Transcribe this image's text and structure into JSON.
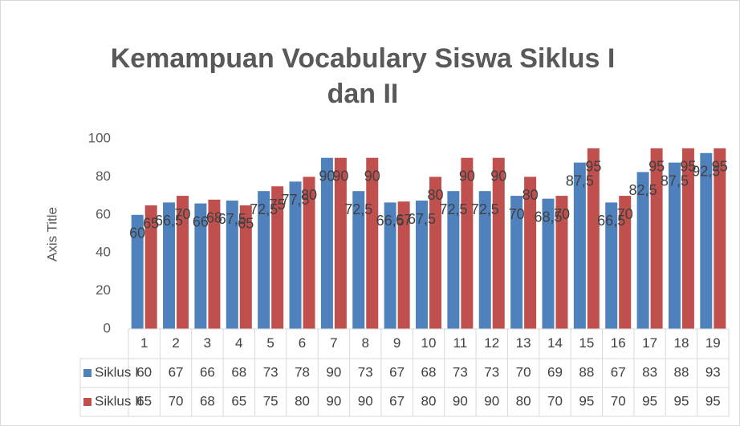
{
  "chart_data": {
    "type": "bar",
    "title": [
      "Kemampuan Vocabulary Siswa Siklus I",
      "dan II"
    ],
    "y_axis_label": "Axis Title",
    "categories": [
      "1",
      "2",
      "3",
      "4",
      "5",
      "6",
      "7",
      "8",
      "9",
      "10",
      "11",
      "12",
      "13",
      "14",
      "15",
      "16",
      "17",
      "18",
      "19"
    ],
    "series": [
      {
        "name": "Siklus I",
        "color": "#4f81bd",
        "values": [
          60,
          66.5,
          66,
          67.5,
          72.5,
          77.5,
          90,
          72.5,
          66.5,
          67.5,
          72.5,
          72.5,
          70,
          68.5,
          87.5,
          66.5,
          82.5,
          87.5,
          92.5
        ],
        "value_labels": [
          "60",
          "66,5",
          "66",
          "67,5",
          "72,5",
          "77,5",
          "90",
          "72,5",
          "66,5",
          "67,5",
          "72,5",
          "72,5",
          "70",
          "68,5",
          "87,5",
          "66,5",
          "82,5",
          "87,5",
          "92,5"
        ],
        "table_labels": [
          "60",
          "67",
          "66",
          "68",
          "73",
          "78",
          "90",
          "73",
          "67",
          "68",
          "73",
          "73",
          "70",
          "69",
          "88",
          "67",
          "83",
          "88",
          "93"
        ]
      },
      {
        "name": "Siklus II",
        "color": "#c0504d",
        "values": [
          65,
          70,
          68,
          65,
          75,
          80,
          90,
          90,
          67,
          80,
          90,
          90,
          80,
          70,
          95,
          70,
          95,
          95,
          95
        ],
        "table_labels": [
          "65",
          "70",
          "68",
          "65",
          "75",
          "80",
          "90",
          "90",
          "67",
          "80",
          "90",
          "90",
          "80",
          "70",
          "95",
          "70",
          "95",
          "95",
          "95"
        ]
      }
    ],
    "ylim": [
      0,
      100
    ],
    "yticks": [
      0,
      20,
      40,
      60,
      80,
      100
    ],
    "grid": false,
    "legend": "data-table"
  }
}
